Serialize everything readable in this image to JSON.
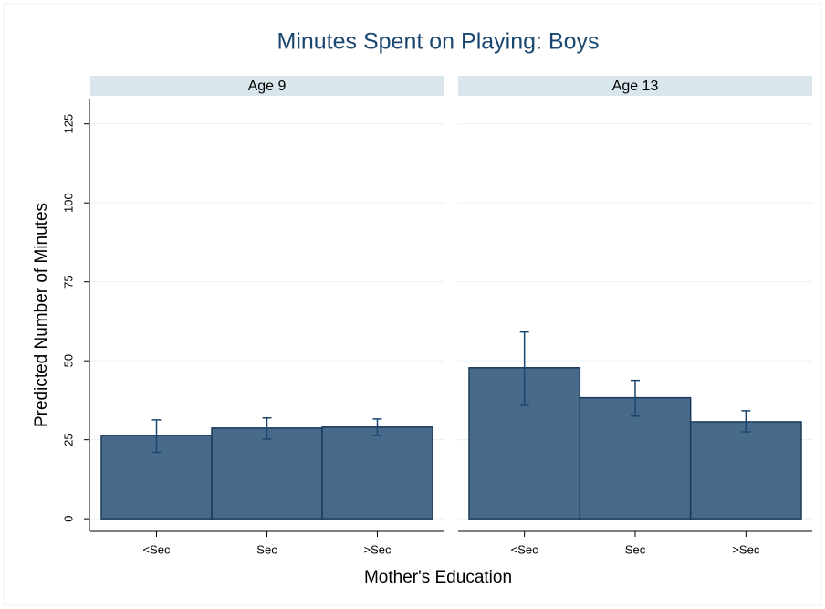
{
  "chart_data": {
    "type": "bar",
    "title": "Minutes Spent on Playing: Boys",
    "x_label": "Mother's Education",
    "y_label": "Predicted Number of Minutes",
    "categories": [
      "<Sec",
      "Sec",
      ">Sec"
    ],
    "ylim": [
      -4,
      133
    ],
    "yticks": [
      0,
      25,
      50,
      75,
      100,
      125
    ],
    "grid": true,
    "color": "#476a8a",
    "panels": [
      {
        "title": "Age 9",
        "values": [
          26.4,
          28.7,
          29.0
        ],
        "ci_low": [
          21.0,
          25.2,
          26.4
        ],
        "ci_high": [
          31.3,
          31.9,
          31.6
        ]
      },
      {
        "title": "Age 13",
        "values": [
          47.8,
          38.3,
          30.7
        ],
        "ci_low": [
          35.9,
          32.5,
          27.5
        ],
        "ci_high": [
          59.1,
          43.8,
          34.2
        ]
      }
    ]
  }
}
